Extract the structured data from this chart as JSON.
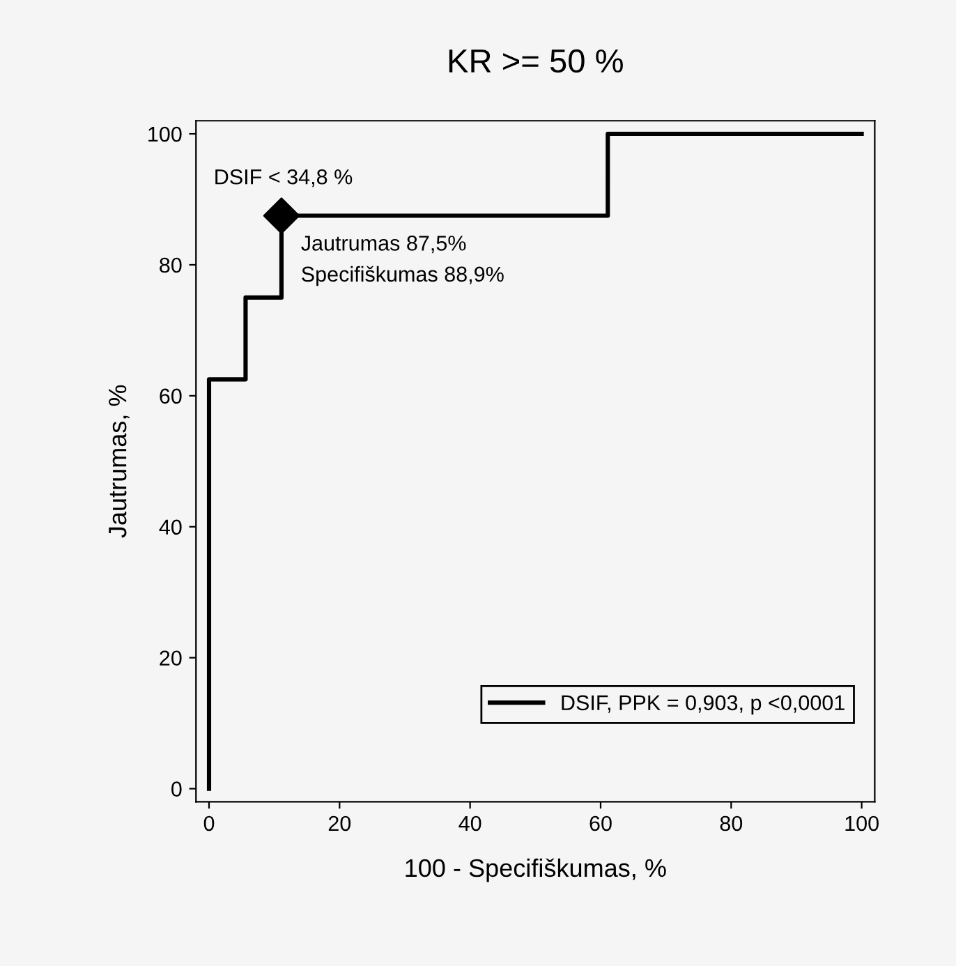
{
  "chart_data": {
    "type": "step",
    "title": "KR >= 50 %",
    "xlabel": "100 - Specifiškumas, %",
    "ylabel": "Jautrumas, %",
    "series": [
      {
        "name": "DSIF, PPK = 0,903, p <0,0001",
        "color": "#000000",
        "x": [
          0,
          0,
          5.6,
          11.1,
          61.1,
          100
        ],
        "values": [
          0,
          62.5,
          75,
          87.5,
          100,
          100
        ]
      },
      {
        "type": "scatter",
        "color": "#000000",
        "marker": "diamond",
        "x": [
          11.1
        ],
        "values": [
          87.5
        ]
      }
    ],
    "annotations": [
      "DSIF < 34,8 %",
      "Jautrumas 87,5%",
      "Specifiškumas 88,9%"
    ],
    "xlim": [
      -2,
      102
    ],
    "ylim": [
      -2,
      102
    ],
    "xticks": [
      0,
      20,
      40,
      60,
      80,
      100
    ],
    "yticks": [
      0,
      20,
      40,
      60,
      80,
      100
    ],
    "grid": false,
    "legend": "bottom right"
  }
}
